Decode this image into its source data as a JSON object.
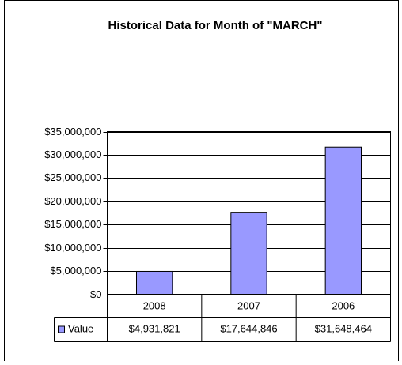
{
  "chart_data": {
    "type": "bar",
    "title": "Historical Data for Month of \"MARCH\"",
    "categories": [
      "2008",
      "2007",
      "2006"
    ],
    "series": [
      {
        "name": "Value",
        "color": "#9999ff",
        "values": [
          4931821,
          17644846,
          31648464
        ],
        "value_labels": [
          "$4,931,821",
          "$17,644,846",
          "$31,648,464"
        ]
      }
    ],
    "ylim": [
      0,
      35000000
    ],
    "yticks": [
      {
        "value": 0,
        "label": "$0"
      },
      {
        "value": 5000000,
        "label": "$5,000,000"
      },
      {
        "value": 10000000,
        "label": "$10,000,000"
      },
      {
        "value": 15000000,
        "label": "$15,000,000"
      },
      {
        "value": 20000000,
        "label": "$20,000,000"
      },
      {
        "value": 25000000,
        "label": "$25,000,000"
      },
      {
        "value": 30000000,
        "label": "$30,000,000"
      },
      {
        "value": 35000000,
        "label": "$35,000,000"
      }
    ],
    "grid": true,
    "data_table": true
  }
}
